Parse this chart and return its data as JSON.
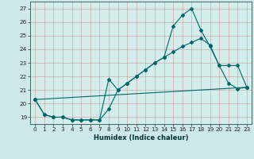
{
  "xlabel": "Humidex (Indice chaleur)",
  "bg_color": "#cce8e8",
  "line_color": "#006666",
  "plot_bg": "#d4eeee",
  "xlim": [
    -0.5,
    23.5
  ],
  "ylim": [
    18.5,
    27.5
  ],
  "yticks": [
    19,
    20,
    21,
    22,
    23,
    24,
    25,
    26,
    27
  ],
  "xticks": [
    0,
    1,
    2,
    3,
    4,
    5,
    6,
    7,
    8,
    9,
    10,
    11,
    12,
    13,
    14,
    15,
    16,
    17,
    18,
    19,
    20,
    21,
    22,
    23
  ],
  "line1_x": [
    0,
    1,
    2,
    3,
    4,
    5,
    6,
    7,
    8,
    9,
    10,
    11,
    12,
    13,
    14,
    15,
    16,
    17,
    18,
    19,
    20,
    21,
    22,
    23
  ],
  "line1_y": [
    20.3,
    19.2,
    19.0,
    19.0,
    18.8,
    18.8,
    18.8,
    18.8,
    19.6,
    21.0,
    21.5,
    22.0,
    22.5,
    23.0,
    23.4,
    23.8,
    24.2,
    24.5,
    24.8,
    24.3,
    22.8,
    21.5,
    21.1,
    21.2
  ],
  "line2_x": [
    0,
    1,
    2,
    3,
    4,
    5,
    6,
    7,
    8,
    9,
    10,
    11,
    12,
    13,
    14,
    15,
    16,
    17,
    18,
    19,
    20,
    21,
    22,
    23
  ],
  "line2_y": [
    20.3,
    19.2,
    19.0,
    19.0,
    18.8,
    18.8,
    18.8,
    18.8,
    21.8,
    21.0,
    21.5,
    22.0,
    22.5,
    23.0,
    23.4,
    25.7,
    26.5,
    27.0,
    25.4,
    24.2,
    22.8,
    22.8,
    22.8,
    21.2
  ],
  "line3_x": [
    0,
    23
  ],
  "line3_y": [
    20.3,
    21.2
  ],
  "grid_color": "#cc9999",
  "marker": "D",
  "markersize": 2.0,
  "linewidth": 0.8,
  "tick_fontsize": 5.2,
  "xlabel_fontsize": 6.0
}
